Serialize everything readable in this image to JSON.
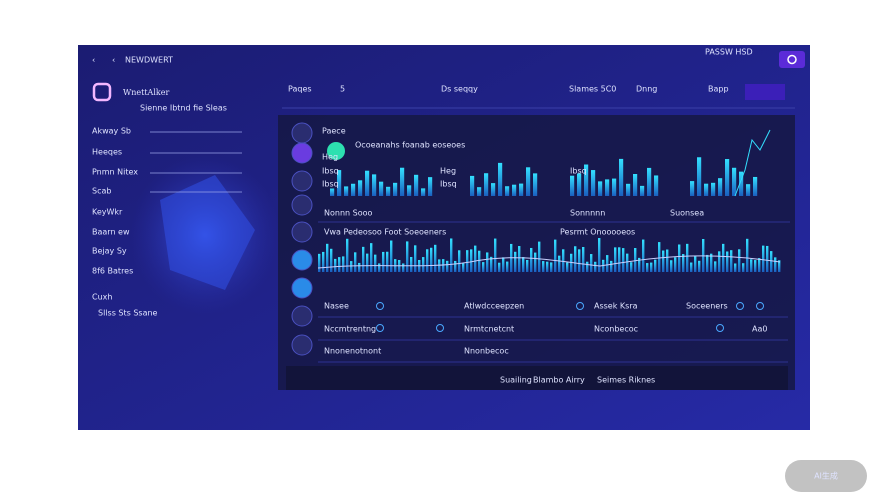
{
  "header": {
    "brand": "NEWDWERT",
    "account": "PASSW HSD"
  },
  "sidebar": {
    "title": "WnettAlker",
    "subtitle": "Sienne Ibtnd fie Sleas",
    "menu": [
      "Akway Sb",
      "Heeqes",
      "Pnmn Nitex",
      "Scab",
      "KeyWkr",
      "Baarn ew",
      "Bejay Sy",
      "8f6 Batres",
      "Cuxh"
    ],
    "footer": "Sllss Sts Ssane"
  },
  "nav": [
    "Paqes",
    "5",
    "Ds seqqy",
    "Slames 5C0",
    "Dnng",
    "Bapp"
  ],
  "panel": {
    "row1": {
      "label": "Paece",
      "title": "Ocoeanahs foanab eoseoes",
      "side_labels": [
        "Heg",
        "Ibsq",
        "Ibsq",
        "Heg",
        "Ibsq",
        "Ibsq"
      ],
      "foot_labels": [
        "Nonnn Sooo",
        "Sonnnnn",
        "Suonsea"
      ]
    },
    "row2": {
      "title": "Vwa Pedeosoo Foot Soeoeners",
      "title2": "Pesrmt Onooooeos"
    },
    "table": [
      [
        "Nasee",
        "Atlwdcceepzen",
        "Assek Ksra",
        "Soceeners"
      ],
      [
        "Nccmtrentng",
        "Nrmtcnetcnt",
        "Nconbecoc",
        "Aa0"
      ],
      [
        "Nnonenotnont",
        "Nnonbecoc"
      ]
    ],
    "bottom": [
      "Suailing",
      "Blambo Airry",
      "Seimes Riknes"
    ]
  },
  "watermark": "AI生成"
}
